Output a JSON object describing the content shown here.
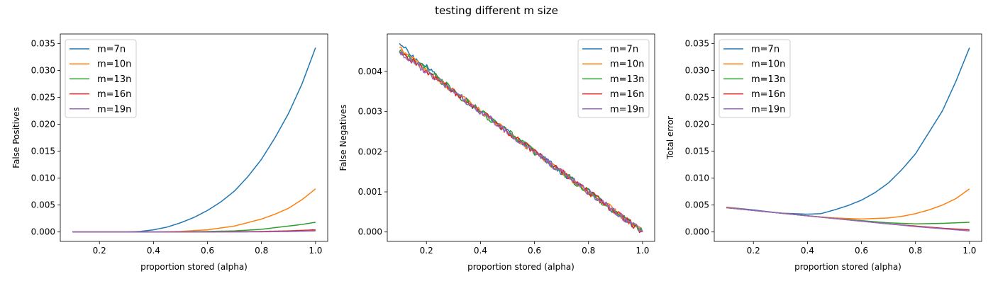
{
  "suptitle": "testing different m size",
  "colors": {
    "m=7n": "#1f77b4",
    "m=10n": "#ff7f0e",
    "m=13n": "#2ca02c",
    "m=16n": "#d62728",
    "m=19n": "#9467bd"
  },
  "chart_data": [
    {
      "type": "line",
      "xlabel": "proportion stored (alpha)",
      "ylabel": "False Positives",
      "xlim": [
        0.055,
        1.045
      ],
      "ylim": [
        -0.00175,
        0.03675
      ],
      "xticks": [
        "0.2",
        "0.4",
        "0.6",
        "0.8",
        "1.0"
      ],
      "yticks": [
        "0.000",
        "0.005",
        "0.010",
        "0.015",
        "0.020",
        "0.025",
        "0.030",
        "0.035"
      ],
      "legend_position": "upper-left",
      "series": [
        {
          "name": "m=7n",
          "x": [
            0.1,
            0.2,
            0.3,
            0.35,
            0.4,
            0.45,
            0.5,
            0.55,
            0.6,
            0.65,
            0.7,
            0.75,
            0.8,
            0.85,
            0.9,
            0.95,
            1.0
          ],
          "y": [
            0,
            0,
            0,
            0.0001,
            0.0004,
            0.0009,
            0.0017,
            0.0027,
            0.004,
            0.0056,
            0.0076,
            0.0103,
            0.0135,
            0.0175,
            0.022,
            0.0275,
            0.0342
          ]
        },
        {
          "name": "m=10n",
          "x": [
            0.1,
            0.4,
            0.5,
            0.6,
            0.7,
            0.8,
            0.85,
            0.9,
            0.95,
            1.0
          ],
          "y": [
            0,
            0,
            0.0001,
            0.0004,
            0.0011,
            0.0024,
            0.0033,
            0.0044,
            0.006,
            0.008
          ]
        },
        {
          "name": "m=13n",
          "x": [
            0.1,
            0.5,
            0.6,
            0.7,
            0.8,
            0.85,
            0.9,
            0.95,
            1.0
          ],
          "y": [
            0,
            0,
            0.0001,
            0.0002,
            0.0005,
            0.0008,
            0.0011,
            0.0014,
            0.0018
          ]
        },
        {
          "name": "m=16n",
          "x": [
            0.1,
            0.6,
            0.7,
            0.8,
            0.9,
            1.0
          ],
          "y": [
            0,
            0,
            5e-05,
            0.0001,
            0.0002,
            0.0004
          ]
        },
        {
          "name": "m=19n",
          "x": [
            0.1,
            0.7,
            0.8,
            0.9,
            1.0
          ],
          "y": [
            0,
            0,
            3e-05,
            8e-05,
            0.0002
          ]
        }
      ]
    },
    {
      "type": "line",
      "xlabel": "proportion stored (alpha)",
      "ylabel": "False Negatives",
      "xlim": [
        0.055,
        1.045
      ],
      "ylim": [
        -0.000235,
        0.004935
      ],
      "xticks": [
        "0.2",
        "0.4",
        "0.6",
        "0.8",
        "1.0"
      ],
      "yticks": [
        "0.000",
        "0.001",
        "0.002",
        "0.003",
        "0.004"
      ],
      "legend_position": "upper-right",
      "series": [
        {
          "name": "m=7n",
          "x": [
            0.1,
            0.2,
            0.3,
            0.4,
            0.5,
            0.6,
            0.7,
            0.8,
            0.9,
            1.0
          ],
          "y": [
            0.0047,
            0.0041,
            0.0035,
            0.003,
            0.0025,
            0.002,
            0.0015,
            0.001,
            0.0005,
            0.0
          ]
        },
        {
          "name": "m=10n",
          "x": [
            0.1,
            0.2,
            0.3,
            0.4,
            0.5,
            0.6,
            0.7,
            0.8,
            0.9,
            1.0
          ],
          "y": [
            0.0046,
            0.004,
            0.0035,
            0.003,
            0.0025,
            0.002,
            0.0015,
            0.001,
            0.0005,
            0.0
          ]
        },
        {
          "name": "m=13n",
          "x": [
            0.1,
            0.2,
            0.3,
            0.4,
            0.5,
            0.6,
            0.7,
            0.8,
            0.9,
            1.0
          ],
          "y": [
            0.0045,
            0.0041,
            0.0035,
            0.003,
            0.0025,
            0.002,
            0.0015,
            0.001,
            0.0005,
            0.0
          ]
        },
        {
          "name": "m=16n",
          "x": [
            0.1,
            0.2,
            0.3,
            0.4,
            0.5,
            0.6,
            0.7,
            0.8,
            0.9,
            1.0
          ],
          "y": [
            0.0045,
            0.004,
            0.0035,
            0.003,
            0.0025,
            0.002,
            0.0015,
            0.001,
            0.0005,
            0.0
          ]
        },
        {
          "name": "m=19n",
          "x": [
            0.1,
            0.2,
            0.3,
            0.4,
            0.5,
            0.6,
            0.7,
            0.8,
            0.9,
            1.0
          ],
          "y": [
            0.0045,
            0.004,
            0.0035,
            0.003,
            0.0025,
            0.002,
            0.0015,
            0.001,
            0.0005,
            0.0
          ]
        }
      ]
    },
    {
      "type": "line",
      "xlabel": "proportion stored (alpha)",
      "ylabel": "Total error",
      "xlim": [
        0.055,
        1.045
      ],
      "ylim": [
        -0.00175,
        0.03675
      ],
      "xticks": [
        "0.2",
        "0.4",
        "0.6",
        "0.8",
        "1.0"
      ],
      "yticks": [
        "0.000",
        "0.005",
        "0.010",
        "0.015",
        "0.020",
        "0.025",
        "0.030",
        "0.035"
      ],
      "legend_position": "upper-left",
      "series": [
        {
          "name": "m=7n",
          "x": [
            0.1,
            0.2,
            0.3,
            0.4,
            0.45,
            0.5,
            0.55,
            0.6,
            0.65,
            0.7,
            0.75,
            0.8,
            0.85,
            0.9,
            0.95,
            1.0
          ],
          "y": [
            0.0046,
            0.0041,
            0.0035,
            0.0033,
            0.0034,
            0.0041,
            0.0049,
            0.0059,
            0.0073,
            0.0091,
            0.0116,
            0.0145,
            0.0185,
            0.0225,
            0.028,
            0.0342
          ]
        },
        {
          "name": "m=10n",
          "x": [
            0.1,
            0.2,
            0.3,
            0.4,
            0.5,
            0.6,
            0.65,
            0.7,
            0.75,
            0.8,
            0.85,
            0.9,
            0.95,
            1.0
          ],
          "y": [
            0.0046,
            0.004,
            0.0035,
            0.003,
            0.0026,
            0.0024,
            0.0025,
            0.0026,
            0.0029,
            0.0034,
            0.0041,
            0.005,
            0.0062,
            0.008
          ]
        },
        {
          "name": "m=13n",
          "x": [
            0.1,
            0.2,
            0.3,
            0.4,
            0.5,
            0.6,
            0.7,
            0.8,
            0.9,
            1.0
          ],
          "y": [
            0.0045,
            0.004,
            0.0035,
            0.003,
            0.0025,
            0.0021,
            0.0017,
            0.0015,
            0.0016,
            0.0018
          ]
        },
        {
          "name": "m=16n",
          "x": [
            0.1,
            0.2,
            0.3,
            0.4,
            0.5,
            0.6,
            0.7,
            0.8,
            0.9,
            1.0
          ],
          "y": [
            0.0045,
            0.004,
            0.0035,
            0.003,
            0.0025,
            0.002,
            0.0015,
            0.0011,
            0.0007,
            0.0004
          ]
        },
        {
          "name": "m=19n",
          "x": [
            0.1,
            0.2,
            0.3,
            0.4,
            0.5,
            0.6,
            0.7,
            0.8,
            0.9,
            1.0
          ],
          "y": [
            0.0045,
            0.004,
            0.0035,
            0.003,
            0.0025,
            0.002,
            0.0015,
            0.001,
            0.0006,
            0.0002
          ]
        }
      ]
    }
  ]
}
